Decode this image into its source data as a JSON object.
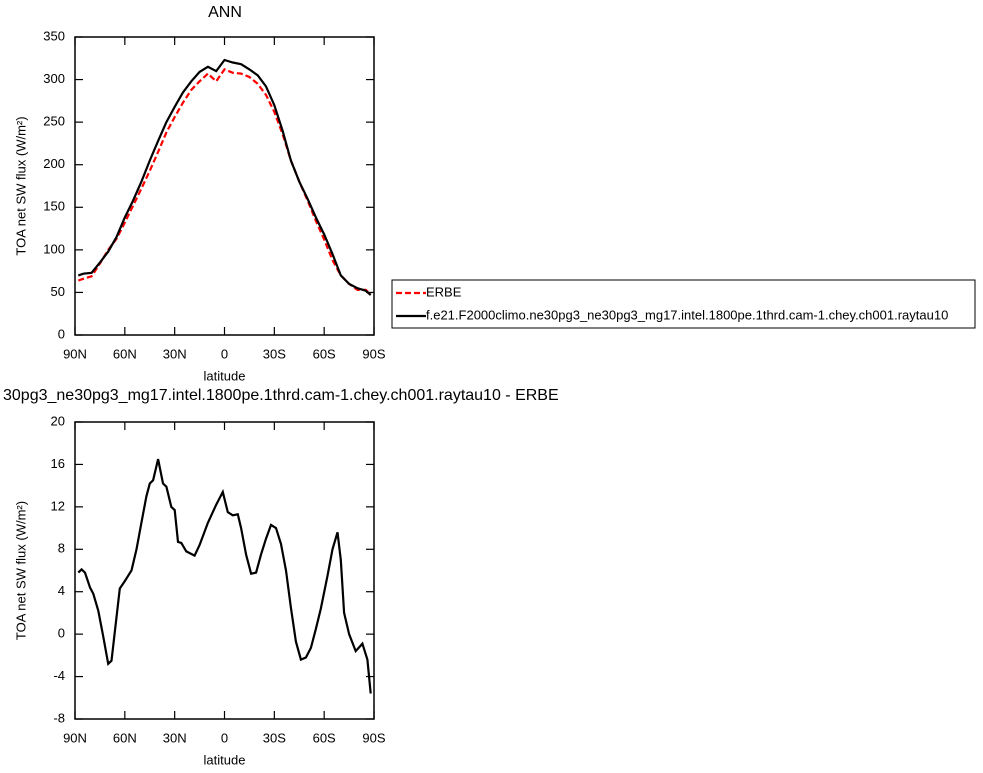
{
  "chart_data": [
    {
      "type": "line",
      "title": "ANN",
      "xlabel": "latitude",
      "ylabel": "TOA net SW flux (W/m²)",
      "x": [
        88,
        85,
        80,
        75,
        70,
        65,
        60,
        55,
        50,
        45,
        40,
        35,
        30,
        25,
        20,
        15,
        10,
        5,
        0,
        -5,
        -10,
        -15,
        -20,
        -25,
        -30,
        -35,
        -40,
        -45,
        -50,
        -55,
        -60,
        -65,
        -70,
        -75,
        -80,
        -85,
        -88
      ],
      "series": [
        {
          "name": "ERBE",
          "color": "#ff0000",
          "linestyle": "dashed",
          "values": [
            64,
            66,
            69,
            84,
            100,
            113,
            132,
            152,
            172,
            193,
            215,
            238,
            256,
            273,
            288,
            298,
            307,
            298,
            312,
            308,
            307,
            303,
            295,
            282,
            262,
            236,
            205,
            180,
            158,
            134,
            112,
            88,
            70,
            60,
            53,
            53,
            48
          ]
        },
        {
          "name": "f.e21.F2000climo.ne30pg3_ne30pg3_mg17.intel.1800pe.1thrd.cam-1.chey.ch001.raytau10",
          "color": "#000000",
          "linestyle": "solid",
          "values": [
            70,
            72,
            73,
            85,
            98,
            115,
            138,
            158,
            180,
            205,
            228,
            250,
            268,
            285,
            298,
            309,
            315,
            310,
            323,
            320,
            318,
            312,
            305,
            292,
            270,
            240,
            205,
            180,
            160,
            138,
            118,
            95,
            70,
            60,
            55,
            52,
            47
          ]
        }
      ],
      "xlim": [
        90,
        -90
      ],
      "xticks": [
        {
          "value": 90,
          "label": "90N"
        },
        {
          "value": 60,
          "label": "60N"
        },
        {
          "value": 30,
          "label": "30N"
        },
        0,
        {
          "value": -30,
          "label": "30S"
        },
        {
          "value": -60,
          "label": "60S"
        },
        {
          "value": -90,
          "label": "90S"
        }
      ],
      "ylim": [
        0,
        350
      ],
      "yticks": [
        0,
        50,
        100,
        150,
        200,
        250,
        300,
        350
      ]
    },
    {
      "type": "line",
      "title": "30pg3_ne30pg3_mg17.intel.1800pe.1thrd.cam-1.chey.ch001.raytau10 - ERBE",
      "xlabel": "latitude",
      "ylabel": "TOA net SW flux (W/m²)",
      "x": [
        88,
        86,
        84,
        81,
        79,
        76,
        73,
        70,
        68,
        63,
        60,
        56,
        53,
        50,
        47,
        45,
        43,
        40,
        37,
        35,
        32,
        30,
        28,
        26,
        23,
        18,
        15,
        10,
        5,
        1,
        -2,
        -5,
        -8,
        -10,
        -13,
        -16,
        -19,
        -22,
        -25,
        -28,
        -31,
        -34,
        -37,
        -40,
        -43,
        -46,
        -49,
        -52,
        -55,
        -58,
        -62,
        -65,
        -68,
        -70,
        -72,
        -75,
        -79,
        -83,
        -86,
        -88
      ],
      "values": [
        5.8,
        6.1,
        5.8,
        4.4,
        3.8,
        2.2,
        -0.2,
        -2.8,
        -2.5,
        4.3,
        5,
        6,
        8,
        10.5,
        13,
        14.2,
        14.5,
        16.5,
        14.2,
        13.9,
        12,
        11.7,
        8.7,
        8.6,
        7.8,
        7.4,
        8.4,
        10.5,
        12.2,
        13.4,
        11.5,
        11.2,
        11.3,
        10,
        7.5,
        5.7,
        5.8,
        7.5,
        9,
        10.3,
        10,
        8.5,
        6,
        2.5,
        -0.7,
        -2.4,
        -2.2,
        -1.3,
        0.5,
        2.4,
        5.5,
        8,
        9.6,
        7,
        2,
        0,
        -1.6,
        -0.9,
        -2.4,
        -5.6
      ],
      "color": "#000000",
      "xlim": [
        90,
        -90
      ],
      "xticks": [
        {
          "value": 90,
          "label": "90N"
        },
        {
          "value": 60,
          "label": "60N"
        },
        {
          "value": 30,
          "label": "30N"
        },
        0,
        {
          "value": -30,
          "label": "30S"
        },
        {
          "value": -60,
          "label": "60S"
        },
        {
          "value": -90,
          "label": "90S"
        }
      ],
      "ylim": [
        -8,
        20
      ],
      "yticks": [
        -8,
        -4,
        0,
        4,
        8,
        12,
        16,
        20
      ]
    }
  ]
}
